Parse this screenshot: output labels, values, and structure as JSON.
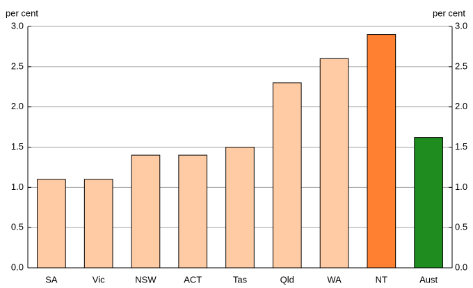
{
  "chart_data": {
    "type": "bar",
    "ylabel": "per cent",
    "y2label": "per cent",
    "categories": [
      "SA",
      "Vic",
      "NSW",
      "ACT",
      "Tas",
      "Qld",
      "WA",
      "NT",
      "Aust"
    ],
    "values": [
      1.1,
      1.1,
      1.4,
      1.4,
      1.5,
      2.3,
      2.6,
      2.9,
      1.62
    ],
    "colors": [
      "#ffcba4",
      "#ffcba4",
      "#ffcba4",
      "#ffcba4",
      "#ffcba4",
      "#ffcba4",
      "#ffcba4",
      "#ff8030",
      "#1e8c1e"
    ],
    "ylim": [
      0,
      3
    ],
    "yticks": [
      {
        "value": 0,
        "label": "0.0"
      },
      0.5,
      {
        "value": 1,
        "label": "1.0"
      },
      1.5,
      {
        "value": 2,
        "label": "2.0"
      },
      2.5,
      {
        "value": 3,
        "label": "3.0"
      }
    ],
    "y2lim": [
      0,
      3
    ],
    "y2ticks": [
      {
        "value": 0,
        "label": "0.0"
      },
      0.5,
      {
        "value": 1,
        "label": "1.0"
      },
      1.5,
      {
        "value": 2,
        "label": "2.0"
      },
      2.5,
      {
        "value": 3,
        "label": "3.0"
      }
    ],
    "grid": true
  }
}
